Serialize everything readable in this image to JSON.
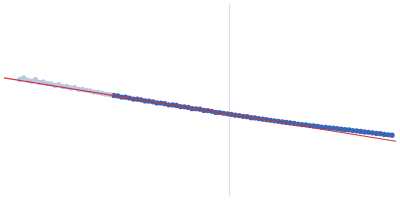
{
  "chart_data": {
    "type": "scatter",
    "xlim": [
      0,
      400
    ],
    "ylim": [
      0,
      200
    ],
    "grid": false,
    "tick_labels": false,
    "vlines": [
      230
    ],
    "series": [
      {
        "color": "#b9c9e2",
        "marker": "circle",
        "x": [
          16,
          20,
          24,
          28,
          32,
          36,
          40,
          44,
          48,
          52,
          56,
          60,
          64,
          68,
          72,
          76,
          80,
          84,
          88,
          92,
          96,
          100,
          104,
          108
        ],
        "values": [
          121.5,
          123.0,
          120.8,
          119.6,
          121.2,
          118.5,
          118.9,
          117.0,
          116.8,
          115.2,
          116.0,
          114.1,
          113.9,
          112.6,
          113.0,
          111.2,
          111.0,
          110.1,
          109.6,
          108.3,
          108.0,
          107.1,
          106.2,
          105.6
        ]
      },
      {
        "color": "#3b65b3",
        "marker": "circle",
        "x": [
          112,
          116,
          120,
          124,
          128,
          132,
          136,
          140,
          144,
          148,
          152,
          156,
          160,
          164,
          168,
          172,
          176,
          180,
          184,
          188,
          192,
          196,
          200,
          204,
          208,
          212,
          216,
          220,
          224,
          228,
          232,
          236,
          240,
          244,
          248,
          252,
          256,
          260,
          264,
          268,
          272,
          276,
          280,
          284,
          288,
          292,
          296,
          300,
          304,
          308,
          312,
          316,
          320,
          324,
          328,
          332,
          336,
          340,
          344,
          348,
          352,
          356,
          360,
          364,
          368,
          372,
          376,
          380,
          384,
          388,
          392,
          396
        ],
        "values": [
          104.8,
          104.2,
          103.0,
          102.9,
          102.1,
          101.0,
          100.9,
          100.2,
          99.0,
          98.9,
          98.1,
          97.0,
          96.9,
          96.2,
          95.0,
          94.9,
          94.3,
          93.1,
          92.9,
          92.3,
          91.0,
          90.9,
          90.4,
          89.1,
          89.0,
          88.3,
          87.1,
          87.0,
          86.2,
          85.6,
          85.0,
          84.2,
          83.8,
          83.0,
          82.6,
          81.6,
          81.3,
          80.6,
          80.0,
          79.5,
          78.9,
          78.3,
          77.8,
          77.2,
          76.6,
          76.1,
          75.6,
          75.0,
          74.4,
          74.1,
          73.4,
          73.0,
          72.6,
          71.9,
          71.6,
          71.0,
          70.6,
          70.2,
          69.6,
          69.1,
          68.9,
          68.2,
          67.8,
          67.3,
          66.7,
          66.4,
          65.8,
          65.2,
          64.9,
          64.1,
          63.8,
          63.4
        ]
      },
      {
        "type": "line",
        "color": "#d1323a",
        "line_style": "solid",
        "x": [
          0,
          400
        ],
        "values": [
          123,
          57
        ]
      }
    ]
  }
}
